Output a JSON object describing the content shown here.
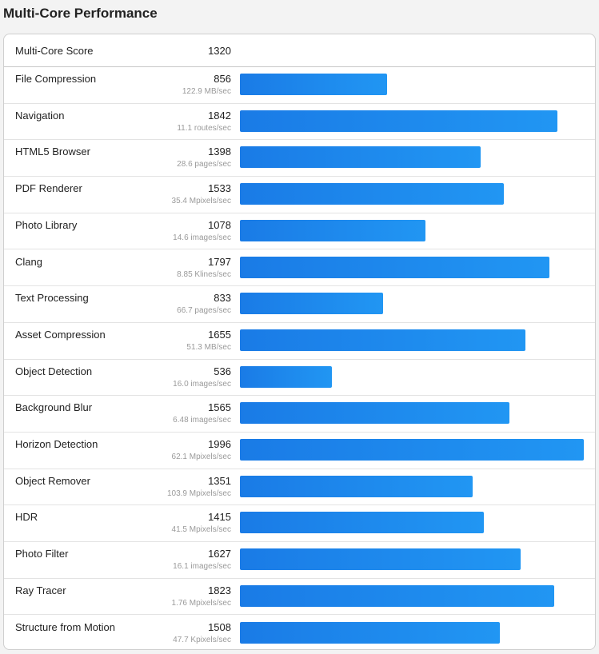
{
  "title": "Multi-Core Performance",
  "header": {
    "label": "Multi-Core Score",
    "score": "1320"
  },
  "max_score": 1996,
  "bar_color": "#1e88ee",
  "rows": [
    {
      "name": "File Compression",
      "score": 856,
      "unit": "122.9 MB/sec"
    },
    {
      "name": "Navigation",
      "score": 1842,
      "unit": "11.1 routes/sec"
    },
    {
      "name": "HTML5 Browser",
      "score": 1398,
      "unit": "28.6 pages/sec"
    },
    {
      "name": "PDF Renderer",
      "score": 1533,
      "unit": "35.4 Mpixels/sec"
    },
    {
      "name": "Photo Library",
      "score": 1078,
      "unit": "14.6 images/sec"
    },
    {
      "name": "Clang",
      "score": 1797,
      "unit": "8.85 Klines/sec"
    },
    {
      "name": "Text Processing",
      "score": 833,
      "unit": "66.7 pages/sec"
    },
    {
      "name": "Asset Compression",
      "score": 1655,
      "unit": "51.3 MB/sec"
    },
    {
      "name": "Object Detection",
      "score": 536,
      "unit": "16.0 images/sec"
    },
    {
      "name": "Background Blur",
      "score": 1565,
      "unit": "6.48 images/sec"
    },
    {
      "name": "Horizon Detection",
      "score": 1996,
      "unit": "62.1 Mpixels/sec"
    },
    {
      "name": "Object Remover",
      "score": 1351,
      "unit": "103.9 Mpixels/sec"
    },
    {
      "name": "HDR",
      "score": 1415,
      "unit": "41.5 Mpixels/sec"
    },
    {
      "name": "Photo Filter",
      "score": 1627,
      "unit": "16.1 images/sec"
    },
    {
      "name": "Ray Tracer",
      "score": 1823,
      "unit": "1.76 Mpixels/sec"
    },
    {
      "name": "Structure from Motion",
      "score": 1508,
      "unit": "47.7 Kpixels/sec"
    }
  ]
}
